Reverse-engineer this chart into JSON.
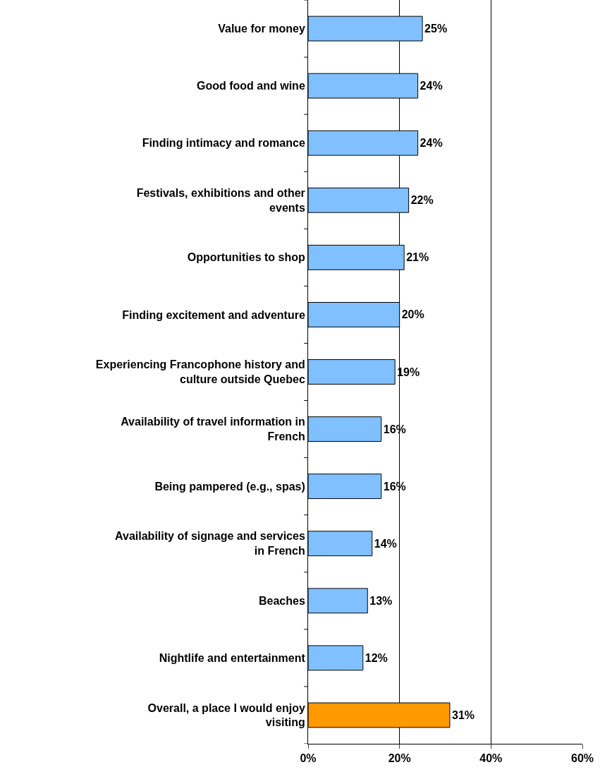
{
  "chart_data": {
    "type": "bar",
    "orientation": "horizontal",
    "categories": [
      "Value for money",
      "Good food and wine",
      "Finding intimacy and romance",
      "Festivals, exhibitions and other events",
      "Opportunities to shop",
      "Finding excitement and adventure",
      "Experiencing Francophone history and culture outside Quebec",
      "Availability of travel information in French",
      "Being pampered (e.g., spas)",
      "Availability of signage and services in French",
      "Beaches",
      "Nightlife and entertainment",
      "Overall, a place I would enjoy visiting"
    ],
    "values": [
      25,
      24,
      24,
      22,
      21,
      20,
      19,
      16,
      16,
      14,
      13,
      12,
      31
    ],
    "value_labels": [
      "25%",
      "24%",
      "24%",
      "22%",
      "21%",
      "20%",
      "19%",
      "16%",
      "16%",
      "14%",
      "13%",
      "12%",
      "31%"
    ],
    "colors": [
      "#80c0ff",
      "#80c0ff",
      "#80c0ff",
      "#80c0ff",
      "#80c0ff",
      "#80c0ff",
      "#80c0ff",
      "#80c0ff",
      "#80c0ff",
      "#80c0ff",
      "#80c0ff",
      "#80c0ff",
      "#ff9900"
    ],
    "xlim": [
      0,
      60
    ],
    "xticks": [
      {
        "value": 0,
        "label": "0%"
      },
      {
        "value": 20,
        "label": "20%"
      },
      {
        "value": 40,
        "label": "40%"
      },
      {
        "value": 60,
        "label": "60%"
      }
    ],
    "grid": "x"
  }
}
